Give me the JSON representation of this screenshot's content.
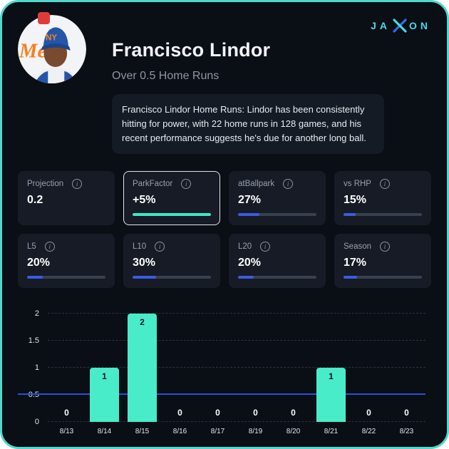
{
  "brand": {
    "prefix": "JA",
    "suffix": "ON"
  },
  "header": {
    "title": "Francisco Lindor",
    "subtitle": "Over 0.5 Home Runs"
  },
  "insight": {
    "text": "Francisco Lindor Home Runs: Lindor has been consistently hitting for power, with 22 home runs in 128 games, and his recent performance suggests he's due for another long ball."
  },
  "stats": [
    {
      "label": "Projection",
      "value": "0.2",
      "bar_pct": null,
      "bar_color": null
    },
    {
      "label": "ParkFactor",
      "value": "+5%",
      "bar_pct": 100,
      "bar_color": "#3fe8c7",
      "highlighted": true
    },
    {
      "label": "atBallpark",
      "value": "27%",
      "bar_pct": 27,
      "bar_color": "#3d5be0"
    },
    {
      "label": "vs RHP",
      "value": "15%",
      "bar_pct": 15,
      "bar_color": "#3d5be0"
    },
    {
      "label": "L5",
      "value": "20%",
      "bar_pct": 20,
      "bar_color": "#3d5be0"
    },
    {
      "label": "L10",
      "value": "30%",
      "bar_pct": 30,
      "bar_color": "#3d5be0"
    },
    {
      "label": "L20",
      "value": "20%",
      "bar_pct": 20,
      "bar_color": "#3d5be0"
    },
    {
      "label": "Season",
      "value": "17%",
      "bar_pct": 17,
      "bar_color": "#3d5be0"
    }
  ],
  "chart_data": {
    "type": "bar",
    "categories": [
      "8/13",
      "8/14",
      "8/15",
      "8/16",
      "8/17",
      "8/19",
      "8/20",
      "8/21",
      "8/22",
      "8/23"
    ],
    "values": [
      0,
      1,
      2,
      0,
      0,
      0,
      0,
      1,
      0,
      0
    ],
    "yticks": [
      0,
      0.5,
      1,
      1.5,
      2
    ],
    "ylim": [
      0,
      2
    ],
    "prop_line": 0.5,
    "bar_color": "#49ecc8",
    "line_color": "#2b50d8",
    "grid": "dashed"
  },
  "colors": {
    "page_bg": "#0a0e15",
    "page_border": "#4fd8cb",
    "card_bg": "#161b26",
    "accent_teal": "#3fe8c7",
    "accent_blue": "#3d5be0"
  }
}
